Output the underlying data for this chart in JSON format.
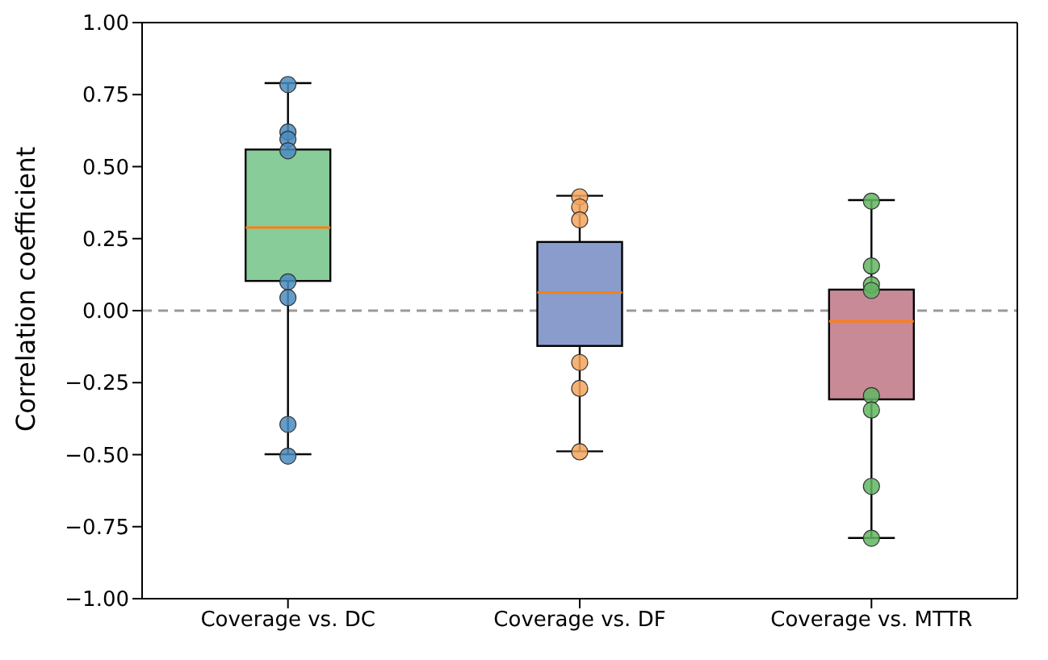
{
  "chart_data": {
    "type": "box",
    "ylabel": "Correlation coefficient",
    "categories": [
      "Coverage vs. DC",
      "Coverage vs. DF",
      "Coverage vs. MTTR"
    ],
    "boxes": [
      {
        "low": -0.5,
        "q1": 0.1,
        "median": 0.285,
        "q3": 0.555,
        "high": 0.785
      },
      {
        "low": -0.49,
        "q1": -0.125,
        "median": 0.06,
        "q3": 0.235,
        "high": 0.395
      },
      {
        "low": -0.79,
        "q1": -0.31,
        "median": -0.04,
        "q3": 0.07,
        "high": 0.38
      }
    ],
    "colors": [
      "#88cc99",
      "#8a9ccb",
      "#c98a98"
    ],
    "series": [
      {
        "type": "scatter",
        "color": "#4a8cc0",
        "x": [
          "Coverage vs. DC",
          "Coverage vs. DC",
          "Coverage vs. DC",
          "Coverage vs. DC",
          "Coverage vs. DC",
          "Coverage vs. DC",
          "Coverage vs. DC",
          "Coverage vs. DC"
        ],
        "values": [
          0.785,
          0.62,
          0.595,
          0.555,
          0.1,
          0.045,
          -0.395,
          -0.505
        ]
      },
      {
        "type": "scatter",
        "color": "#f5a45c",
        "x": [
          "Coverage vs. DF",
          "Coverage vs. DF",
          "Coverage vs. DF",
          "Coverage vs. DF",
          "Coverage vs. DF",
          "Coverage vs. DF"
        ],
        "values": [
          0.395,
          0.36,
          0.315,
          -0.18,
          -0.27,
          -0.49
        ]
      },
      {
        "type": "scatter",
        "color": "#62b562",
        "x": [
          "Coverage vs. MTTR",
          "Coverage vs. MTTR",
          "Coverage vs. MTTR",
          "Coverage vs. MTTR",
          "Coverage vs. MTTR",
          "Coverage vs. MTTR",
          "Coverage vs. MTTR",
          "Coverage vs. MTTR"
        ],
        "values": [
          0.38,
          0.155,
          0.09,
          0.07,
          -0.295,
          -0.345,
          -0.61,
          -0.79
        ]
      }
    ],
    "ylim": [
      -1,
      1
    ],
    "yticks": [
      {
        "value": -1,
        "label": "−1.00"
      },
      {
        "value": -0.75,
        "label": "−0.75"
      },
      {
        "value": -0.5,
        "label": "−0.50"
      },
      {
        "value": -0.25,
        "label": "−0.25"
      },
      {
        "value": 0,
        "label": "0.00"
      },
      {
        "value": 0.25,
        "label": "0.25"
      },
      {
        "value": 0.5,
        "label": "0.50"
      },
      {
        "value": 0.75,
        "label": "0.75"
      },
      {
        "value": 1,
        "label": "1.00"
      }
    ],
    "ref_lines": [
      {
        "axis": "y",
        "value": 0,
        "color": "#999999",
        "line_style": "dashed"
      }
    ],
    "marker": "circle",
    "grid": false,
    "legend": false
  }
}
